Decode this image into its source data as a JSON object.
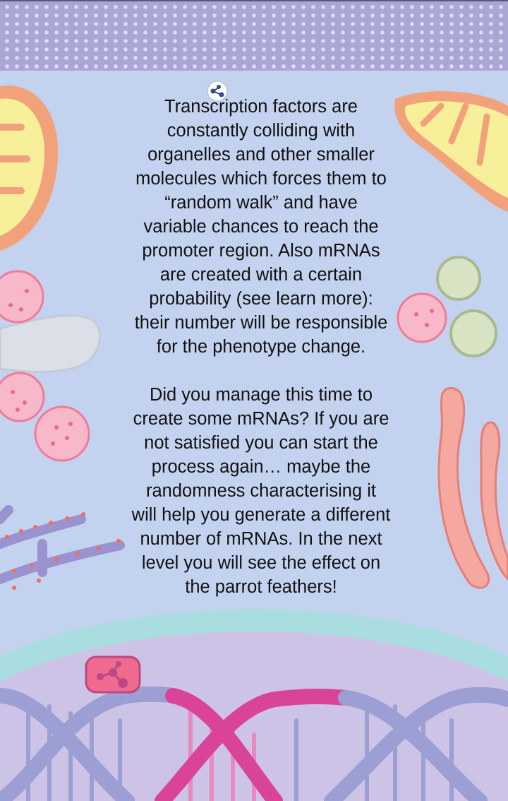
{
  "screen": {
    "paragraphs": [
      "Transcription factors are\nconstantly colliding with\norganelles and other smaller\nmolecules which forces them to\n“random walk” and have\nvariable chances to reach the\npromoter region. Also mRNAs\nare created with a certain\nprobability (see learn more):\ntheir number will be responsible\nfor the phenotype change.",
      "Did you manage this time to\ncreate some mRNAs? If you are\nnot satisfied you can start the\nprocess again… maybe the\nrandomness characterising it\nwill help you generate a different\nnumber of mRNAs. In the next\nlevel you will see the effect on\nthe parrot feathers!"
    ]
  },
  "icons": {
    "info": "molecule-icon",
    "badge": "molecule-badge-icon"
  },
  "colors": {
    "background": "#c3d3ef",
    "header": "#aaa7d6",
    "mitochondria": "#f1a27a",
    "vesicle": "#f7b9c9",
    "dna_blue": "#9b9fd3",
    "dna_pink": "#d9449a",
    "nucleus": "#cdc3e6"
  }
}
